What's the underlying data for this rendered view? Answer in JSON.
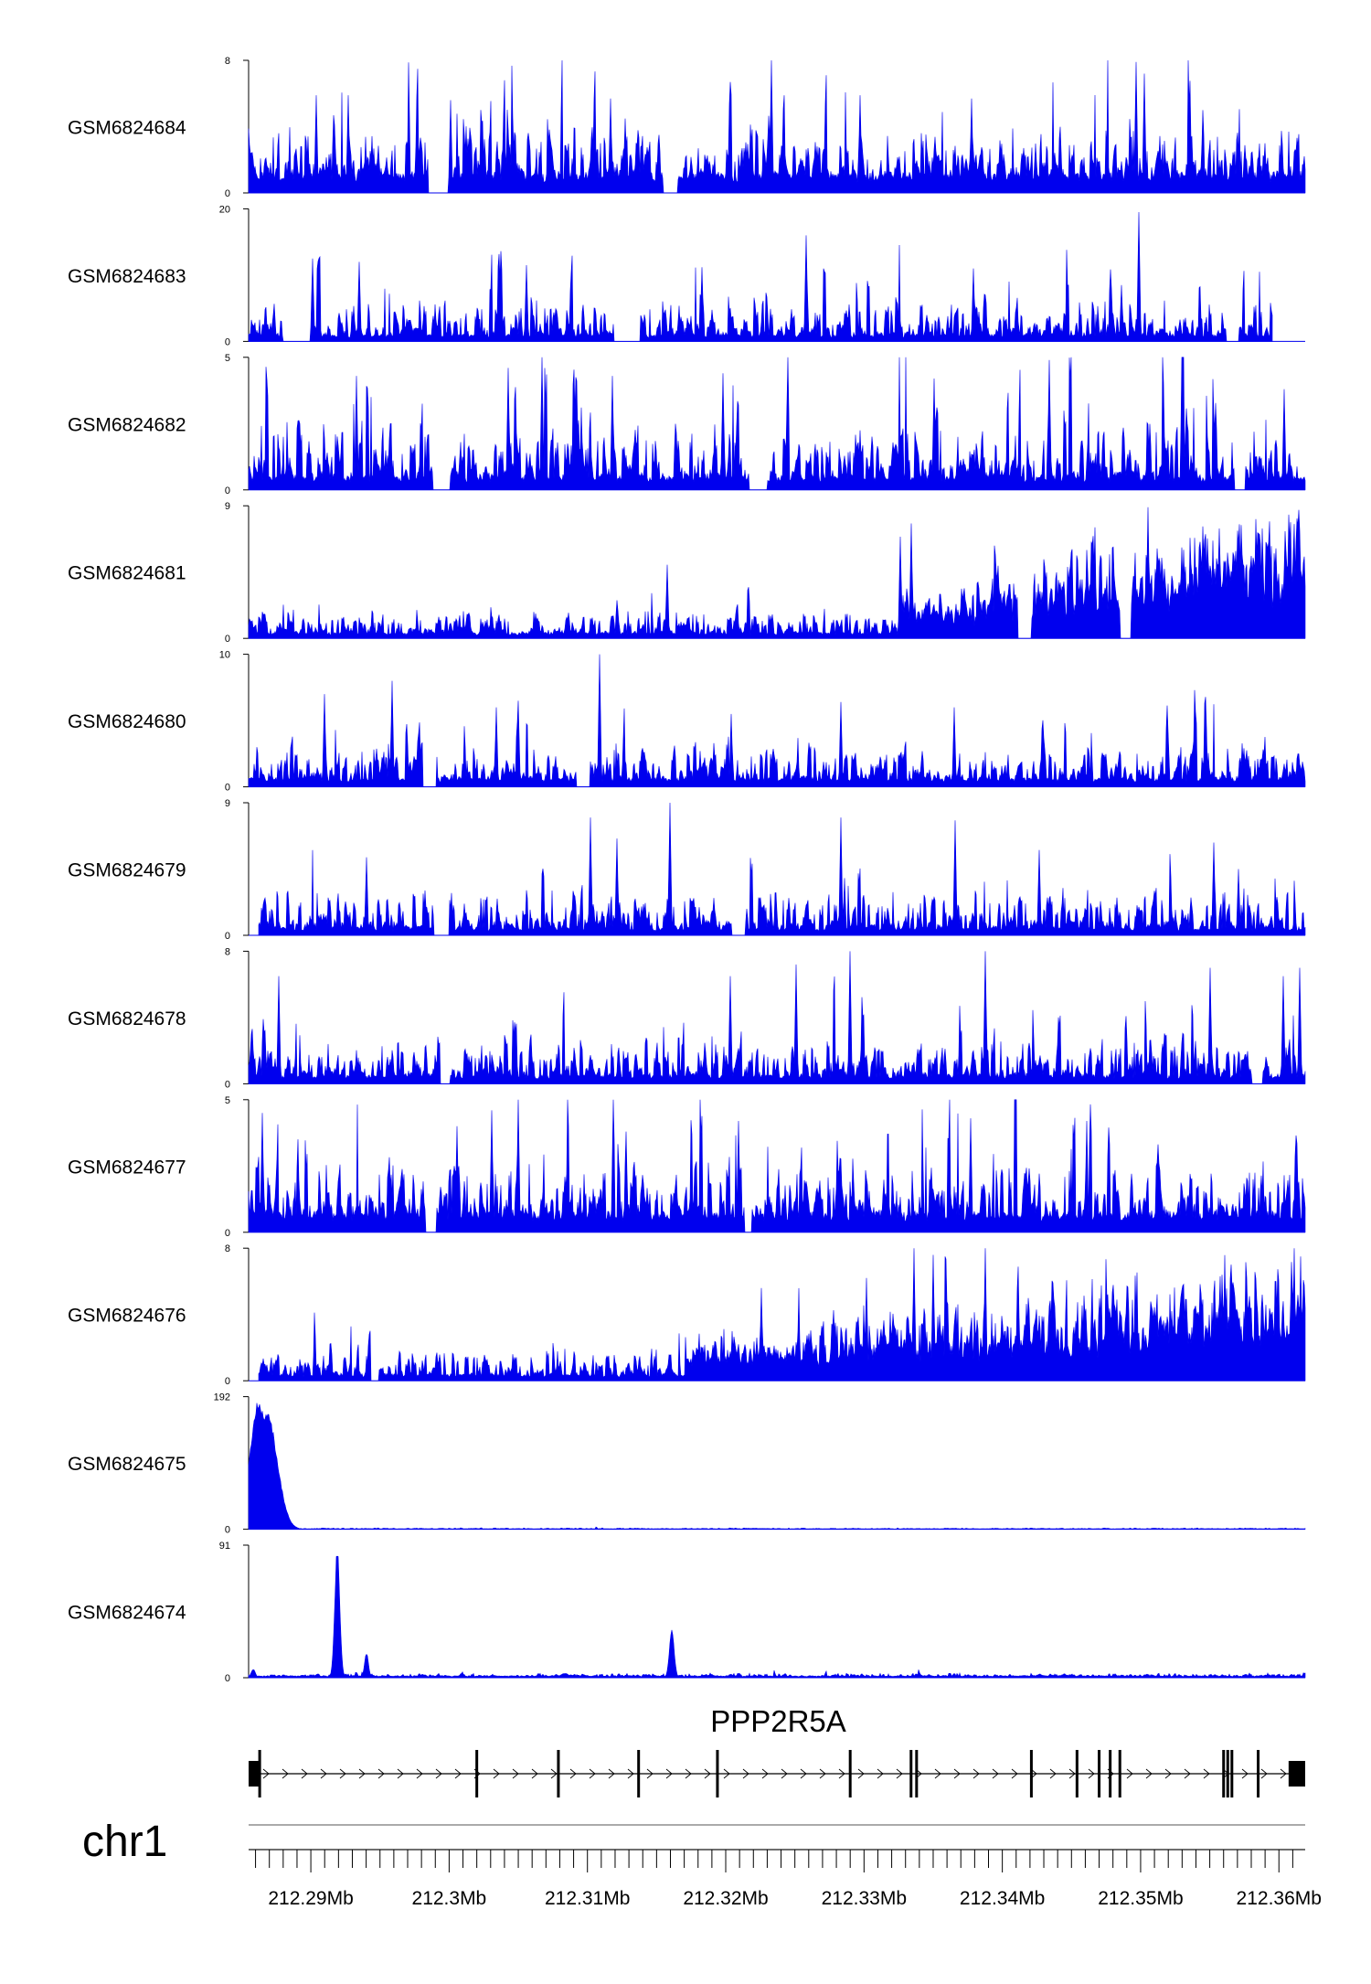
{
  "chart_data": {
    "type": "area",
    "chromosome": "chr1",
    "x_range_mb": [
      212.2855,
      212.3619
    ],
    "fill_color": "#0000ee",
    "tracks": [
      {
        "name": "GSM6824684",
        "ylim": [
          0,
          8
        ],
        "y_min_label": "0",
        "y_max_label": "8",
        "baseline": 0.9,
        "noise": 2.4,
        "spike_rate": 0.16,
        "gaps": [
          [
            212.2985,
            212.3001
          ],
          [
            212.3154,
            212.3165
          ]
        ],
        "peaks": [
          {
            "x": 212.3233,
            "h": 8
          },
          {
            "x": 212.3497,
            "h": 7.9
          },
          {
            "x": 212.3503,
            "h": 7.2
          },
          {
            "x": 212.2927,
            "h": 5.9
          },
          {
            "x": 212.2904,
            "h": 5.9
          },
          {
            "x": 212.3117,
            "h": 5.7
          },
          {
            "x": 212.3297,
            "h": 5.9
          },
          {
            "x": 212.3378,
            "h": 5.7
          },
          {
            "x": 212.3545,
            "h": 5
          },
          {
            "x": 212.3001,
            "h": 5.6
          }
        ]
      },
      {
        "name": "GSM6824683",
        "ylim": [
          0,
          20
        ],
        "y_min_label": "0",
        "y_max_label": "20",
        "baseline": 0.8,
        "noise": 4.5,
        "spike_rate": 0.13,
        "gaps": [
          [
            212.288,
            212.2901
          ],
          [
            212.3119,
            212.3138
          ],
          [
            212.3562,
            212.3571
          ]
        ],
        "end": 212.3595,
        "peaks": [
          {
            "x": 212.3499,
            "h": 19.5
          },
          {
            "x": 212.3258,
            "h": 16
          },
          {
            "x": 212.2935,
            "h": 12
          },
          {
            "x": 212.2901,
            "h": 12.5
          },
          {
            "x": 212.3056,
            "h": 11.5
          },
          {
            "x": 212.3183,
            "h": 11.2
          },
          {
            "x": 212.3379,
            "h": 11
          },
          {
            "x": 212.3486,
            "h": 8.5
          }
        ]
      },
      {
        "name": "GSM6824682",
        "ylim": [
          0,
          5
        ],
        "y_min_label": "0",
        "y_max_label": "5",
        "baseline": 0.4,
        "noise": 1.7,
        "spike_rate": 0.17,
        "gaps": [
          [
            212.2988,
            212.3001
          ],
          [
            212.3217,
            212.323
          ],
          [
            212.3568,
            212.3576
          ]
        ],
        "peaks": [
          {
            "x": 212.3067,
            "h": 5
          },
          {
            "x": 212.3434,
            "h": 4.9
          },
          {
            "x": 212.3043,
            "h": 4.6
          },
          {
            "x": 212.3118,
            "h": 4.3
          },
          {
            "x": 212.3198,
            "h": 4.4
          },
          {
            "x": 212.2933,
            "h": 4.3
          },
          {
            "x": 212.3351,
            "h": 4.2
          },
          {
            "x": 212.3604,
            "h": 3.8
          }
        ]
      },
      {
        "name": "GSM6824681",
        "ylim": [
          0,
          9
        ],
        "y_min_label": "0",
        "y_max_label": "9",
        "baseline": 0.3,
        "noise": 1.3,
        "spike_rate": 0.1,
        "ramp": [
          212.3327,
          212.3619,
          1.2,
          4.8
        ],
        "gaps": [
          [
            212.3411,
            212.3421
          ],
          [
            212.3484,
            212.3493
          ]
        ],
        "peaks": [
          {
            "x": 212.3505,
            "h": 8.9
          },
          {
            "x": 212.3607,
            "h": 8.4
          },
          {
            "x": 212.3583,
            "h": 8.1
          },
          {
            "x": 212.3334,
            "h": 7.8
          },
          {
            "x": 212.3545,
            "h": 7.6
          },
          {
            "x": 212.3326,
            "h": 6.9
          },
          {
            "x": 212.3461,
            "h": 6
          },
          {
            "x": 212.3158,
            "h": 5
          }
        ]
      },
      {
        "name": "GSM6824680",
        "ylim": [
          0,
          10
        ],
        "y_min_label": "0",
        "y_max_label": "10",
        "baseline": 0.5,
        "noise": 2.3,
        "spike_rate": 0.13,
        "gaps": [
          [
            212.298,
            212.2991
          ],
          [
            212.3092,
            212.3102
          ]
        ],
        "peaks": [
          {
            "x": 212.3109,
            "h": 10
          },
          {
            "x": 212.2959,
            "h": 8
          },
          {
            "x": 212.291,
            "h": 7
          },
          {
            "x": 212.305,
            "h": 6.5
          },
          {
            "x": 212.3283,
            "h": 6.4
          },
          {
            "x": 212.3365,
            "h": 6
          },
          {
            "x": 212.3204,
            "h": 5.5
          },
          {
            "x": 212.3034,
            "h": 6
          }
        ]
      },
      {
        "name": "GSM6824679",
        "ylim": [
          0,
          9
        ],
        "y_min_label": "0",
        "y_max_label": "9",
        "baseline": 0.4,
        "noise": 2.1,
        "spike_rate": 0.14,
        "start": 212.2862,
        "gaps": [
          [
            212.2989,
            212.3
          ],
          [
            212.3204,
            212.3214
          ]
        ],
        "peaks": [
          {
            "x": 212.316,
            "h": 9
          },
          {
            "x": 212.3102,
            "h": 8
          },
          {
            "x": 212.3283,
            "h": 8
          },
          {
            "x": 212.3366,
            "h": 7.8
          },
          {
            "x": 212.3553,
            "h": 6.3
          },
          {
            "x": 212.3427,
            "h": 5.8
          },
          {
            "x": 212.3571,
            "h": 4.5
          },
          {
            "x": 212.294,
            "h": 5.3
          }
        ]
      },
      {
        "name": "GSM6824678",
        "ylim": [
          0,
          8
        ],
        "y_min_label": "0",
        "y_max_label": "8",
        "baseline": 0.4,
        "noise": 1.9,
        "spike_rate": 0.15,
        "gaps": [
          [
            212.2992,
            212.3001
          ],
          [
            212.358,
            212.3588
          ]
        ],
        "peaks": [
          {
            "x": 212.329,
            "h": 8
          },
          {
            "x": 212.3388,
            "h": 8
          },
          {
            "x": 212.3251,
            "h": 7.2
          },
          {
            "x": 212.355,
            "h": 7
          },
          {
            "x": 212.3615,
            "h": 7
          },
          {
            "x": 212.3603,
            "h": 6.5
          },
          {
            "x": 212.3203,
            "h": 6.5
          },
          {
            "x": 212.2877,
            "h": 6.5
          }
        ]
      },
      {
        "name": "GSM6824677",
        "ylim": [
          0,
          5
        ],
        "y_min_label": "0",
        "y_max_label": "5",
        "baseline": 0.6,
        "noise": 1.6,
        "spike_rate": 0.18,
        "gaps": [
          [
            212.2983,
            212.2991
          ],
          [
            212.3212,
            212.3219
          ]
        ],
        "peaks": [
          {
            "x": 212.305,
            "h": 5
          },
          {
            "x": 212.3031,
            "h": 4.6
          },
          {
            "x": 212.2865,
            "h": 4.5
          },
          {
            "x": 212.3377,
            "h": 4.3
          },
          {
            "x": 212.3209,
            "h": 4.2
          },
          {
            "x": 212.3461,
            "h": 4.2
          },
          {
            "x": 212.3006,
            "h": 4
          },
          {
            "x": 212.3128,
            "h": 3.8
          }
        ]
      },
      {
        "name": "GSM6824676",
        "ylim": [
          0,
          8
        ],
        "y_min_label": "0",
        "y_max_label": "8",
        "baseline": 0.3,
        "noise": 1.2,
        "spike_rate": 0.12,
        "start": 212.2862,
        "ramp": [
          212.317,
          212.3619,
          0.8,
          4.2
        ],
        "gaps": [
          [
            212.2942,
            212.2949
          ]
        ],
        "peaks": [
          {
            "x": 212.3336,
            "h": 8
          },
          {
            "x": 212.3388,
            "h": 8
          },
          {
            "x": 212.335,
            "h": 7.6
          },
          {
            "x": 212.3302,
            "h": 6.2
          },
          {
            "x": 212.3616,
            "h": 7.5
          },
          {
            "x": 212.3598,
            "h": 6
          },
          {
            "x": 212.3559,
            "h": 6.4
          },
          {
            "x": 212.3226,
            "h": 5.6
          }
        ]
      },
      {
        "name": "GSM6824675",
        "ylim": [
          0,
          192
        ],
        "y_min_label": "0",
        "y_max_label": "192",
        "baseline": 0.6,
        "noise": 1.0,
        "spike_rate": 0.02,
        "peaks": [
          {
            "x": 212.2862,
            "h": 188,
            "w": 0.00062
          },
          {
            "x": 212.2868,
            "h": 170,
            "w": 0.00075
          }
        ]
      },
      {
        "name": "GSM6824674",
        "ylim": [
          0,
          91
        ],
        "y_min_label": "0",
        "y_max_label": "91",
        "baseline": 1.0,
        "noise": 1.6,
        "spike_rate": 0.04,
        "peaks": [
          {
            "x": 212.2919,
            "h": 90,
            "w": 0.00018
          },
          {
            "x": 212.3161,
            "h": 33,
            "w": 0.00017
          },
          {
            "x": 212.294,
            "h": 17,
            "w": 0.00014
          },
          {
            "x": 212.2858,
            "h": 6,
            "w": 0.00015
          },
          {
            "x": 212.3084,
            "h": 3,
            "w": 0.0003
          }
        ]
      }
    ],
    "gene": {
      "name": "PPP2R5A",
      "strand": "+",
      "start": 212.2855,
      "end": 212.3619,
      "utr_blocks": [
        [
          212.2855,
          212.2863
        ],
        [
          212.3607,
          212.3619
        ]
      ],
      "exons": [
        212.2863,
        212.302,
        212.3079,
        212.3137,
        212.3194,
        212.329,
        212.3334,
        212.3338,
        212.3421,
        212.3454,
        212.347,
        212.3478,
        212.3485,
        212.356,
        212.3563,
        212.3566,
        212.3585
      ]
    },
    "x_axis": {
      "ticks_mb": [
        212.29,
        212.3,
        212.31,
        212.32,
        212.33,
        212.34,
        212.35,
        212.36
      ],
      "tick_labels": [
        "212.29Mb",
        "212.3Mb",
        "212.31Mb",
        "212.32Mb",
        "212.33Mb",
        "212.34Mb",
        "212.35Mb",
        "212.36Mb"
      ],
      "minor_step_mb": 0.001
    }
  }
}
